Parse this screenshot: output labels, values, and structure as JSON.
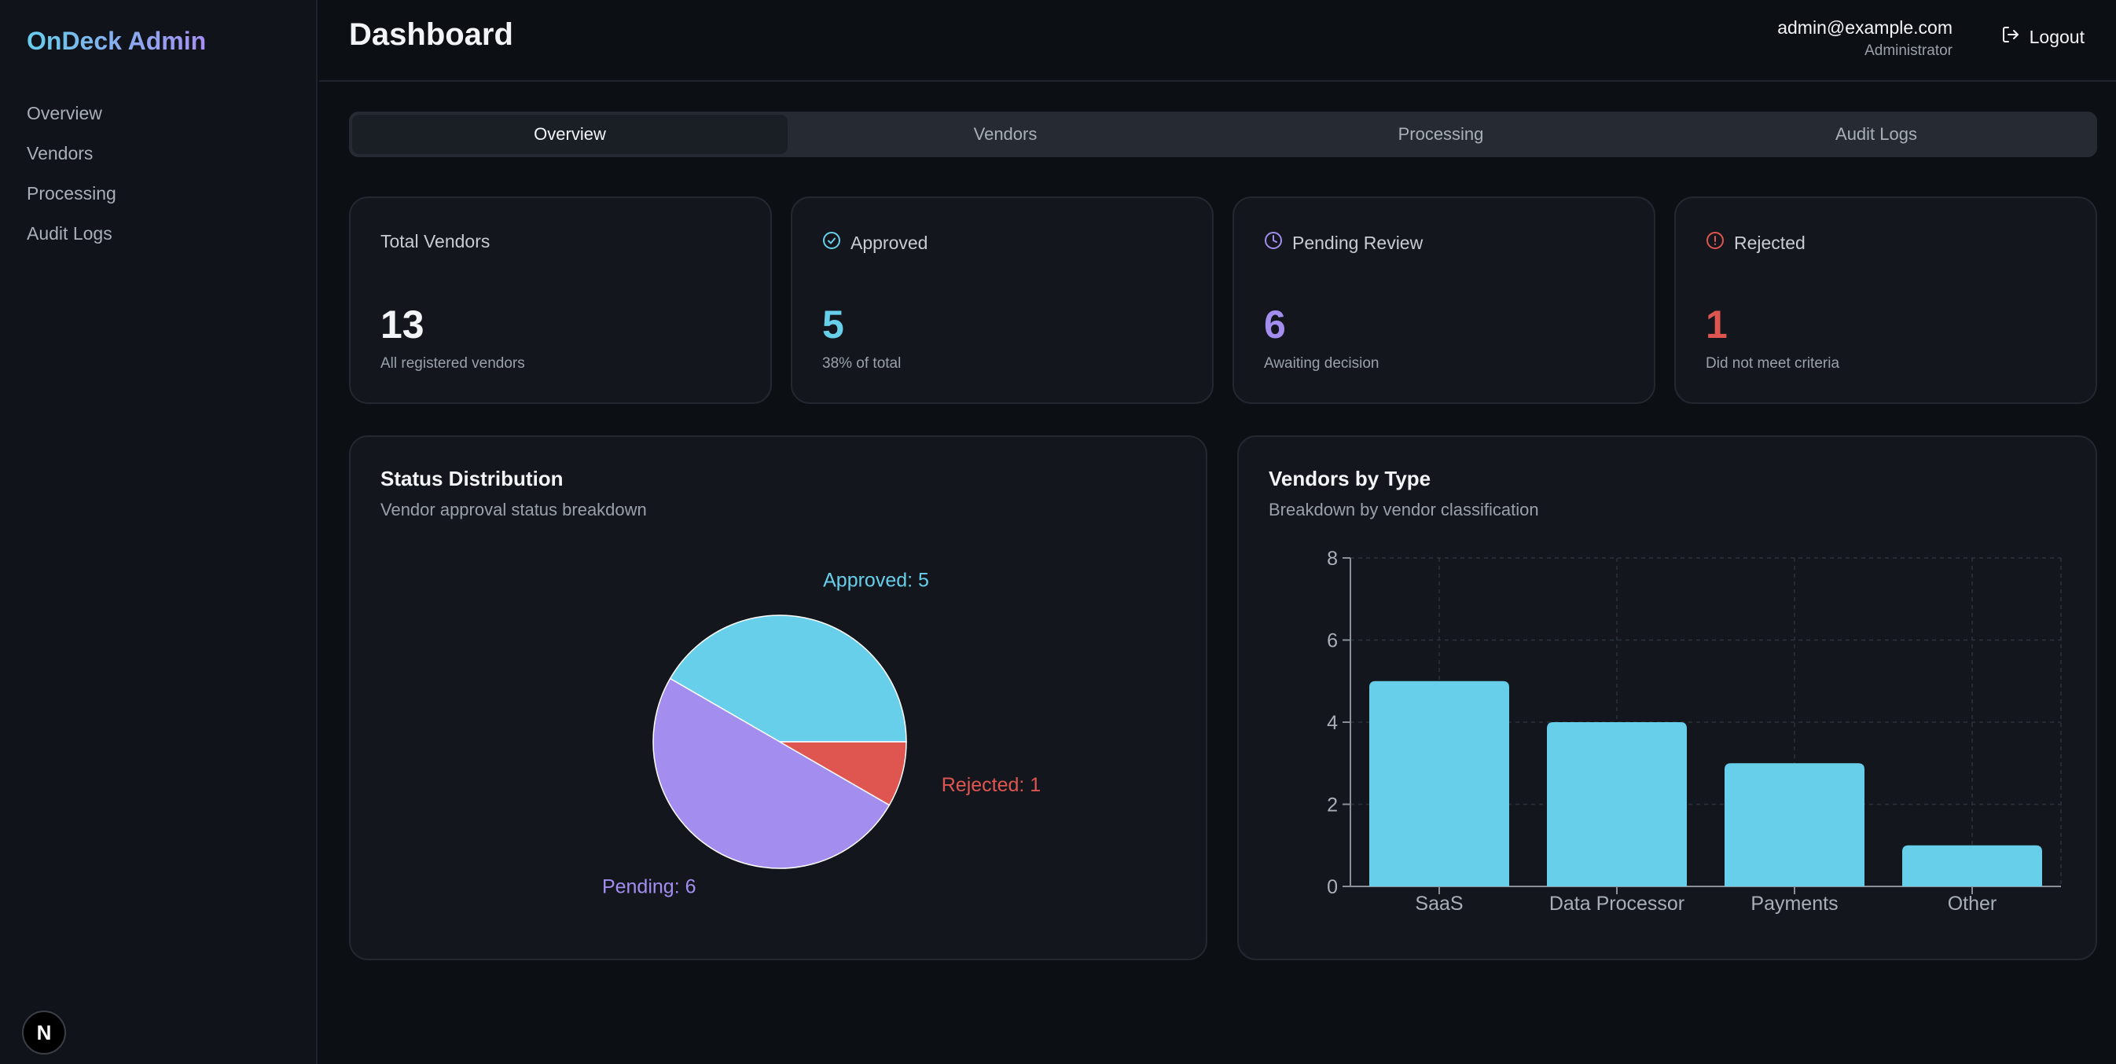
{
  "sidebar": {
    "brand": "OnDeck Admin",
    "items": [
      {
        "label": "Overview"
      },
      {
        "label": "Vendors"
      },
      {
        "label": "Processing"
      },
      {
        "label": "Audit Logs"
      }
    ],
    "badge_letter": "N"
  },
  "header": {
    "title": "Dashboard",
    "user_email": "admin@example.com",
    "user_role": "Administrator",
    "logout_label": "Logout"
  },
  "tabs": [
    {
      "label": "Overview",
      "active": true
    },
    {
      "label": "Vendors",
      "active": false
    },
    {
      "label": "Processing",
      "active": false
    },
    {
      "label": "Audit Logs",
      "active": false
    }
  ],
  "stats": [
    {
      "label": "Total Vendors",
      "value": "13",
      "sub": "All registered vendors",
      "icon": "",
      "color": "#f2f4f7"
    },
    {
      "label": "Approved",
      "value": "5",
      "sub": "38% of total",
      "icon": "check-circle-icon",
      "color": "#67cfea"
    },
    {
      "label": "Pending Review",
      "value": "6",
      "sub": "Awaiting decision",
      "icon": "clock-icon",
      "color": "#a38ef0"
    },
    {
      "label": "Rejected",
      "value": "1",
      "sub": "Did not meet criteria",
      "icon": "alert-circle-icon",
      "color": "#df5550"
    }
  ],
  "charts": {
    "status": {
      "title": "Status Distribution",
      "subtitle": "Vendor approval status breakdown"
    },
    "type": {
      "title": "Vendors by Type",
      "subtitle": "Breakdown by vendor classification"
    }
  },
  "chart_data": [
    {
      "type": "pie",
      "title": "Status Distribution",
      "slices": [
        {
          "name": "Approved",
          "value": 5,
          "label": "Approved: 5",
          "color": "#67cfea"
        },
        {
          "name": "Rejected",
          "value": 1,
          "label": "Rejected: 1",
          "color": "#df5550"
        },
        {
          "name": "Pending",
          "value": 6,
          "label": "Pending: 6",
          "color": "#a38ef0"
        }
      ]
    },
    {
      "type": "bar",
      "title": "Vendors by Type",
      "categories": [
        "SaaS",
        "Data Processor",
        "Payments",
        "Other"
      ],
      "values": [
        5,
        4,
        3,
        1
      ],
      "ylim": [
        0,
        8
      ],
      "yticks": [
        0,
        2,
        4,
        6,
        8
      ],
      "grid": true,
      "color": "#67cfea"
    }
  ]
}
